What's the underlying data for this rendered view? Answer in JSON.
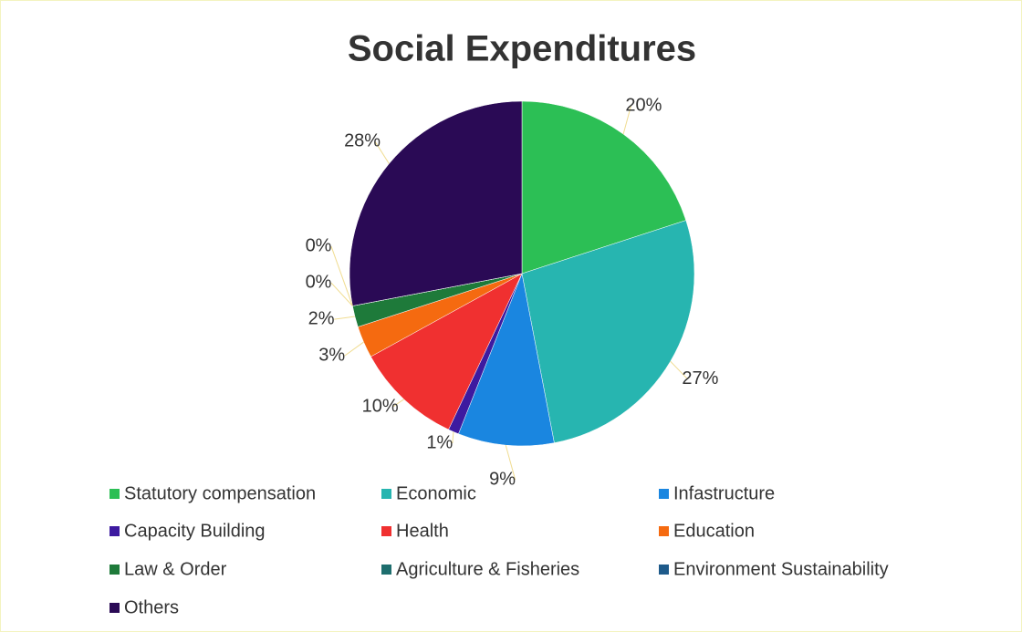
{
  "chart_data": {
    "type": "pie",
    "title": "Social Expenditures",
    "categories": [
      "Statutory compensation",
      "Economic",
      "Infastructure",
      "Capacity Building",
      "Health",
      "Education",
      "Law & Order",
      "Agriculture & Fisheries",
      "Environment Sustainability",
      "Others"
    ],
    "values": [
      20,
      27,
      9,
      1,
      10,
      3,
      2,
      0,
      0,
      28
    ],
    "value_labels": [
      "20%",
      "27%",
      "9%",
      "1%",
      "10%",
      "3%",
      "2%",
      "0%",
      "0%",
      "28%"
    ],
    "colors": [
      "#2cbf55",
      "#27b5b0",
      "#1a86e0",
      "#3d1aa0",
      "#f03030",
      "#f56a10",
      "#1e7a3a",
      "#1e6e6e",
      "#1e5a8a",
      "#2a0a55"
    ]
  }
}
